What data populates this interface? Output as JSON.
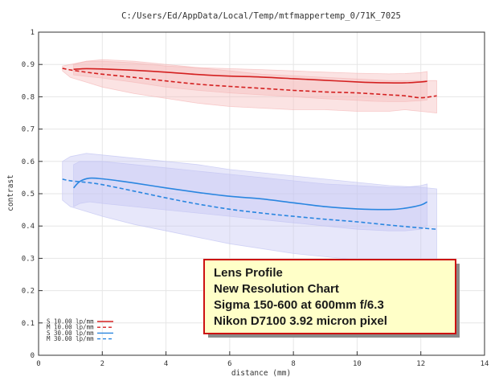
{
  "chart_data": {
    "type": "line",
    "title": "C:/Users/Ed/AppData/Local/Temp/mtfmappertemp_0/71K_7025",
    "xlabel": "distance (mm)",
    "ylabel": "contrast",
    "xlim": [
      0,
      14
    ],
    "ylim": [
      0,
      1
    ],
    "xticks": [
      0,
      2,
      4,
      6,
      8,
      10,
      12,
      14
    ],
    "yticks": [
      0,
      0.1,
      0.2,
      0.3,
      0.4,
      0.5,
      0.6,
      0.7,
      0.8,
      0.9,
      1
    ],
    "x_tick_labels": [
      "0",
      "2",
      "4",
      "6",
      "8",
      "10",
      "12",
      "14"
    ],
    "y_tick_labels": [
      "0",
      "0.1",
      "0.2",
      "0.3",
      "0.4",
      "0.5",
      "0.6",
      "0.7",
      "0.8",
      "0.9",
      "1"
    ],
    "grid": true,
    "legend_position": "bottom-left",
    "series": [
      {
        "name": "S 10.00 lp/mm",
        "color": "#d42020",
        "dash": "solid",
        "band_color": "#f5b8b8",
        "x": [
          1.1,
          1.5,
          2,
          3,
          4,
          5,
          6,
          7,
          8,
          9,
          10,
          10.5,
          11,
          11.5,
          12,
          12.2
        ],
        "y": [
          0.885,
          0.887,
          0.886,
          0.882,
          0.876,
          0.869,
          0.864,
          0.861,
          0.856,
          0.851,
          0.846,
          0.844,
          0.843,
          0.843,
          0.846,
          0.848
        ],
        "upper": [
          0.9,
          0.91,
          0.91,
          0.905,
          0.895,
          0.89,
          0.887,
          0.884,
          0.88,
          0.876,
          0.873,
          0.872,
          0.871,
          0.872,
          0.875,
          0.878
        ],
        "lower": [
          0.868,
          0.863,
          0.858,
          0.845,
          0.83,
          0.82,
          0.812,
          0.806,
          0.8,
          0.794,
          0.789,
          0.786,
          0.785,
          0.785,
          0.788,
          0.79
        ]
      },
      {
        "name": "M 10.00 lp/mm",
        "color": "#d42020",
        "dash": "dashed",
        "band_color": "#f5b8b8",
        "x": [
          0.75,
          1,
          1.5,
          2,
          3,
          4,
          5,
          6,
          7,
          8,
          9,
          10,
          11,
          11.5,
          12,
          12.5
        ],
        "y": [
          0.888,
          0.883,
          0.876,
          0.87,
          0.86,
          0.849,
          0.839,
          0.832,
          0.826,
          0.82,
          0.815,
          0.812,
          0.806,
          0.803,
          0.797,
          0.803
        ],
        "upper": [
          0.895,
          0.9,
          0.91,
          0.915,
          0.91,
          0.9,
          0.89,
          0.88,
          0.87,
          0.865,
          0.86,
          0.855,
          0.85,
          0.85,
          0.85,
          0.85
        ],
        "lower": [
          0.88,
          0.86,
          0.845,
          0.83,
          0.81,
          0.795,
          0.78,
          0.77,
          0.765,
          0.76,
          0.76,
          0.755,
          0.755,
          0.76,
          0.755,
          0.75
        ]
      },
      {
        "name": "S 30.00 lp/mm",
        "color": "#2a86e0",
        "dash": "solid",
        "band_color": "#c2c4f2",
        "x": [
          1.1,
          1.3,
          1.6,
          2,
          2.5,
          3,
          4,
          5,
          6,
          7,
          8,
          9,
          10,
          11,
          11.5,
          12,
          12.2
        ],
        "y": [
          0.518,
          0.538,
          0.548,
          0.546,
          0.54,
          0.533,
          0.518,
          0.504,
          0.492,
          0.484,
          0.472,
          0.46,
          0.453,
          0.451,
          0.455,
          0.465,
          0.475
        ],
        "upper": [
          0.59,
          0.6,
          0.6,
          0.6,
          0.595,
          0.59,
          0.58,
          0.57,
          0.56,
          0.55,
          0.54,
          0.53,
          0.525,
          0.52,
          0.52,
          0.525,
          0.53
        ],
        "lower": [
          0.46,
          0.47,
          0.475,
          0.47,
          0.465,
          0.46,
          0.45,
          0.44,
          0.43,
          0.42,
          0.41,
          0.4,
          0.39,
          0.385,
          0.385,
          0.39,
          0.4
        ]
      },
      {
        "name": "M 30.00 lp/mm",
        "color": "#2a86e0",
        "dash": "dashed",
        "band_color": "#c2c4f2",
        "x": [
          0.75,
          1,
          1.5,
          2,
          3,
          4,
          5,
          6,
          7,
          8,
          9,
          10,
          11,
          12,
          12.5
        ],
        "y": [
          0.545,
          0.54,
          0.535,
          0.528,
          0.508,
          0.487,
          0.468,
          0.452,
          0.44,
          0.43,
          0.421,
          0.413,
          0.403,
          0.394,
          0.39
        ],
        "upper": [
          0.6,
          0.615,
          0.625,
          0.62,
          0.61,
          0.6,
          0.59,
          0.575,
          0.565,
          0.555,
          0.545,
          0.535,
          0.525,
          0.52,
          0.515
        ],
        "lower": [
          0.48,
          0.46,
          0.445,
          0.43,
          0.405,
          0.385,
          0.365,
          0.345,
          0.33,
          0.315,
          0.305,
          0.295,
          0.285,
          0.28,
          0.275
        ]
      }
    ],
    "annotation": {
      "lines": [
        "Lens Profile",
        "New Resolution Chart",
        "Sigma 150-600 at 600mm f/6.3",
        "Nikon D7100 3.92 micron pixel"
      ],
      "fill": "#ffffc8",
      "border": "#cc1111",
      "text_color": "#1a1a1a"
    }
  }
}
